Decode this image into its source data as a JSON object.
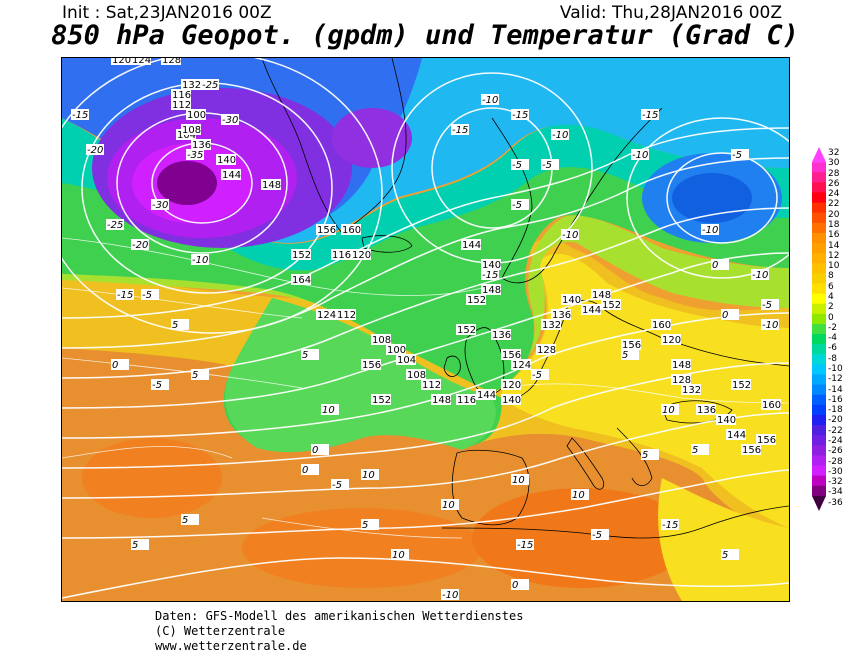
{
  "header": {
    "init": "Init : Sat,23JAN2016 00Z",
    "valid": "Valid: Thu,28JAN2016 00Z",
    "title": "850 hPa Geopot. (gpdm) und Temperatur (Grad C)"
  },
  "footer": {
    "line1": "Daten: GFS-Modell des amerikanischen Wetterdienstes",
    "line2": "(C) Wetterzentrale",
    "line3": "www.wetterzentrale.de"
  },
  "colorbar": {
    "ticks": [
      "32",
      "30",
      "28",
      "26",
      "24",
      "22",
      "20",
      "18",
      "16",
      "14",
      "12",
      "10",
      "8",
      "6",
      "4",
      "2",
      "0",
      "-2",
      "-4",
      "-6",
      "-8",
      "-10",
      "-12",
      "-14",
      "-16",
      "-18",
      "-20",
      "-22",
      "-24",
      "-26",
      "-28",
      "-30",
      "-32",
      "-34",
      "-36"
    ],
    "colors": [
      "#ff40ff",
      "#ff30d0",
      "#ff2090",
      "#ff1050",
      "#ff0010",
      "#ff3000",
      "#ff5000",
      "#ff7000",
      "#ff9000",
      "#ffa000",
      "#ffb000",
      "#ffc000",
      "#f8d000",
      "#ffe000",
      "#ffff00",
      "#c8f000",
      "#90e800",
      "#40e040",
      "#00d860",
      "#00d8a0",
      "#00d8d8",
      "#00c8ff",
      "#00a8ff",
      "#0088ff",
      "#0060ff",
      "#0040ff",
      "#2020f0",
      "#5020e0",
      "#7020e0",
      "#9020e0",
      "#b020f0",
      "#d020ff",
      "#c000c0",
      "#800080",
      "#400040"
    ]
  },
  "map_labels": {
    "geopotential": [
      "120",
      "124",
      "128",
      "132",
      "116",
      "112",
      "104",
      "100",
      "108",
      "136",
      "140",
      "144",
      "148",
      "152",
      "156",
      "160",
      "164",
      "116",
      "120",
      "124",
      "112",
      "108",
      "100",
      "104",
      "108",
      "112",
      "116",
      "120",
      "124",
      "128",
      "132",
      "136",
      "140",
      "144",
      "148",
      "152",
      "156",
      "160",
      "120",
      "128",
      "132",
      "136",
      "140",
      "144",
      "148",
      "152",
      "156",
      "156",
      "160",
      "140",
      "144",
      "148",
      "152",
      "152",
      "156",
      "136",
      "140",
      "144",
      "148",
      "152",
      "156"
    ],
    "temperature": [
      "-15",
      "-20",
      "-25",
      "-30",
      "-35",
      "-25",
      "-30",
      "-20",
      "-15",
      "-10",
      "-5",
      "-15",
      "-10",
      "-5",
      "-15",
      "-10",
      "-5",
      "-10",
      "-15",
      "-10",
      "-5",
      "0",
      "5",
      "5",
      "10",
      "10",
      "5",
      "10",
      "-5",
      "0",
      "5",
      "10",
      "5",
      "0",
      "-5",
      "-10",
      "-15",
      "-10",
      "-5",
      "0",
      "5",
      "10",
      "5",
      "-5",
      "5",
      "10",
      "-10",
      "-15",
      "-10",
      "-5",
      "-15",
      "5",
      "0",
      "10",
      "5",
      "0",
      "-5"
    ]
  }
}
